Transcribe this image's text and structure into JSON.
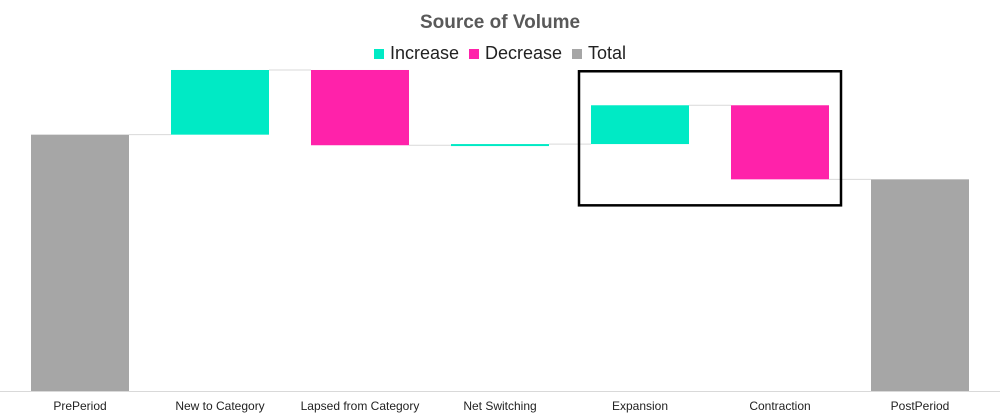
{
  "chart_data": {
    "type": "bar",
    "subtype": "waterfall",
    "title": "Source of Volume",
    "legend": {
      "placement": "top",
      "items": [
        {
          "name": "Increase",
          "color": "#00EAC5"
        },
        {
          "name": "Decrease",
          "color": "#FF22AA"
        },
        {
          "name": "Total",
          "color": "#A6A6A6"
        }
      ]
    },
    "categories": [
      "PrePeriod",
      "New to Category",
      "Lapsed from Category",
      "Net Switching",
      "Expansion",
      "Contraction",
      "PostPeriod"
    ],
    "steps": [
      {
        "kind": "total",
        "value": 218
      },
      {
        "kind": "increase",
        "value": 55
      },
      {
        "kind": "decrease",
        "value": -64
      },
      {
        "kind": "increase",
        "value": 1
      },
      {
        "kind": "increase",
        "value": 33
      },
      {
        "kind": "decrease",
        "value": -63
      },
      {
        "kind": "total",
        "value": 180
      }
    ],
    "ylim": [
      0,
      290
    ],
    "grid": false,
    "highlight": {
      "categories": [
        "Expansion",
        "Contraction"
      ],
      "shape": "rectangle-outline"
    }
  }
}
